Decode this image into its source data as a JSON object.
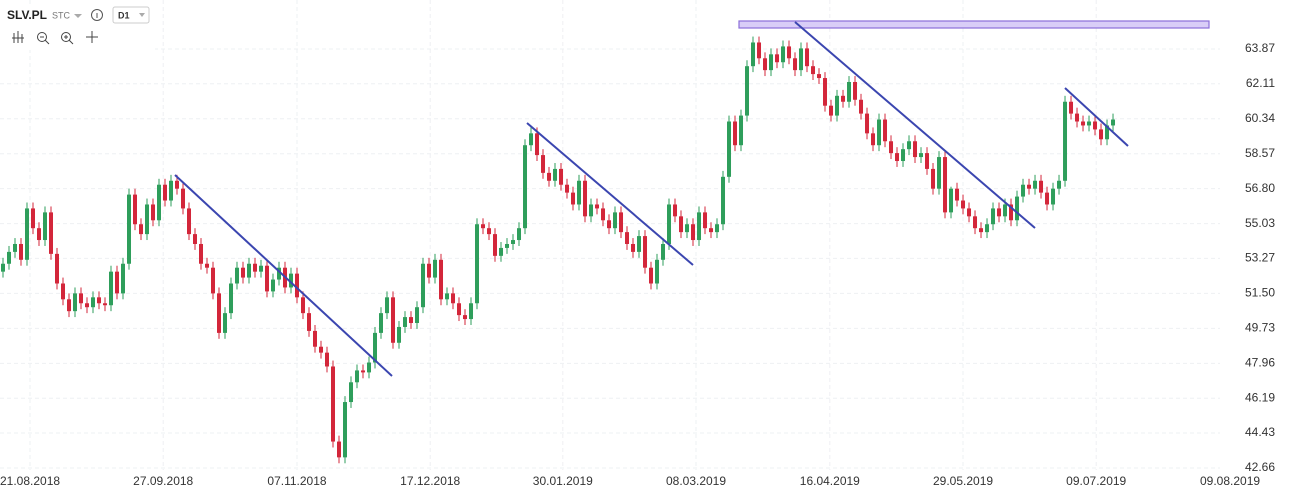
{
  "toolbar": {
    "symbol": "SLV.PL",
    "mode": "STC",
    "interval": "D1"
  },
  "chart_data": {
    "type": "candlestick",
    "up_color": "#2e9e5b",
    "down_color": "#d3263a",
    "grid": true,
    "xlim": [
      -0.5,
      202.83
    ],
    "xticks": [
      {
        "value": 4.5,
        "label": "21.08.2018"
      },
      {
        "value": 26.7,
        "label": "27.09.2018"
      },
      {
        "value": 49,
        "label": "07.11.2018"
      },
      {
        "value": 71.2,
        "label": "17.12.2018"
      },
      {
        "value": 93.3,
        "label": "30.01.2019"
      },
      {
        "value": 115.5,
        "label": "08.03.2019"
      },
      {
        "value": 137.8,
        "label": "16.04.2019"
      },
      {
        "value": 160,
        "label": "29.05.2019"
      },
      {
        "value": 182.2,
        "label": "09.07.2019"
      },
      {
        "value": 204.5,
        "label": "09.08.2019"
      }
    ],
    "ylim": [
      42.56,
      66.35
    ],
    "yticks": [
      63.87,
      62.11,
      60.34,
      58.57,
      {
        "value": 56.8,
        "label": "56.80"
      },
      55.03,
      53.27,
      {
        "value": 51.5,
        "label": "51.50"
      },
      49.73,
      47.96,
      46.19,
      44.43,
      42.66
    ],
    "open": [
      52.6,
      53.0,
      53.6,
      54.0,
      53.2,
      55.8,
      54.8,
      54.2,
      55.6,
      53.5,
      52.0,
      51.2,
      50.6,
      51.5,
      51.0,
      50.8,
      51.3,
      51.0,
      50.9,
      52.6,
      51.5,
      53.0,
      56.5,
      55.0,
      54.5,
      56.0,
      55.2,
      57.0,
      56.2,
      57.2,
      56.8,
      55.8,
      54.5,
      54.0,
      53.0,
      52.8,
      51.5,
      49.5,
      50.5,
      52.0,
      52.8,
      52.3,
      53.0,
      52.6,
      52.9,
      51.6,
      52.2,
      52.8,
      51.8,
      52.5,
      51.3,
      50.5,
      49.6,
      48.8,
      48.5,
      47.8,
      44.0,
      43.2,
      46.0,
      47.0,
      47.6,
      47.5,
      48.0,
      49.5,
      50.5,
      51.3,
      49.0,
      49.8,
      50.3,
      50.0,
      50.8,
      53.0,
      52.3,
      53.2,
      51.2,
      51.5,
      51.0,
      50.4,
      50.2,
      51.0,
      55.0,
      54.8,
      54.5,
      53.4,
      53.8,
      54.0,
      54.2,
      54.8,
      59.0,
      59.6,
      58.5,
      57.6,
      57.2,
      57.8,
      57.0,
      56.6,
      56.0,
      57.2,
      55.4,
      56.0,
      55.8,
      55.2,
      54.8,
      55.6,
      54.6,
      54.0,
      53.6,
      54.4,
      52.8,
      52.0,
      53.2,
      54.0,
      56.0,
      55.4,
      54.6,
      55.0,
      54.2,
      55.6,
      54.8,
      54.6,
      55.0,
      57.4,
      60.2,
      59.0,
      60.5,
      63.0,
      64.2,
      63.4,
      62.8,
      63.6,
      63.2,
      64.0,
      63.4,
      62.8,
      63.9,
      63.0,
      62.6,
      62.4,
      61.0,
      60.5,
      61.5,
      61.2,
      62.2,
      61.3,
      60.6,
      59.6,
      59.0,
      60.3,
      59.2,
      58.6,
      58.2,
      58.8,
      59.2,
      58.4,
      58.6,
      57.8,
      56.8,
      58.4,
      55.6,
      56.8,
      56.2,
      55.8,
      55.4,
      54.8,
      54.6,
      55.0,
      55.8,
      55.4,
      56.0,
      55.2,
      56.4,
      57.0,
      56.8,
      57.2,
      56.6,
      56.0,
      56.8,
      57.2,
      61.2,
      60.6,
      60.2,
      60.0,
      60.2,
      59.8,
      59.3,
      60.0
    ],
    "high": [
      53.3,
      53.9,
      54.3,
      54.3,
      56.1,
      56.1,
      55.1,
      55.9,
      55.9,
      53.8,
      52.3,
      51.5,
      51.8,
      51.8,
      51.3,
      51.6,
      51.6,
      51.3,
      52.9,
      52.9,
      53.3,
      56.8,
      56.8,
      55.3,
      56.3,
      56.3,
      57.3,
      57.3,
      57.5,
      57.5,
      57.1,
      56.1,
      54.8,
      54.3,
      53.3,
      53.1,
      51.8,
      50.8,
      52.3,
      53.1,
      53.1,
      53.3,
      53.3,
      53.2,
      53.2,
      52.5,
      53.1,
      53.1,
      52.8,
      52.8,
      51.6,
      50.8,
      49.9,
      49.1,
      48.8,
      48.1,
      44.3,
      46.3,
      47.3,
      47.9,
      47.9,
      48.3,
      49.8,
      50.8,
      51.6,
      51.6,
      50.1,
      50.6,
      50.6,
      51.1,
      53.3,
      53.3,
      53.5,
      53.5,
      51.8,
      51.8,
      51.3,
      50.7,
      51.3,
      55.3,
      55.3,
      55.1,
      54.8,
      54.1,
      54.3,
      54.5,
      55.1,
      59.3,
      59.9,
      59.9,
      58.8,
      57.9,
      58.1,
      58.1,
      57.3,
      56.9,
      57.5,
      57.5,
      56.3,
      56.3,
      56.1,
      55.5,
      55.9,
      55.9,
      54.9,
      54.3,
      54.7,
      54.7,
      53.1,
      53.5,
      54.3,
      56.3,
      56.3,
      55.7,
      55.3,
      55.3,
      55.9,
      55.9,
      55.1,
      55.3,
      57.7,
      60.5,
      60.5,
      60.8,
      63.3,
      64.5,
      64.5,
      63.7,
      63.9,
      63.9,
      64.3,
      64.3,
      63.7,
      64.2,
      64.2,
      63.3,
      62.9,
      62.7,
      61.3,
      61.8,
      61.8,
      62.5,
      62.5,
      61.6,
      60.9,
      59.9,
      60.6,
      60.6,
      59.5,
      58.9,
      59.1,
      59.5,
      59.5,
      58.9,
      58.9,
      58.1,
      58.7,
      58.7,
      56.9,
      57.1,
      56.5,
      56.1,
      55.7,
      55.1,
      55.3,
      56.1,
      56.1,
      56.3,
      56.3,
      56.7,
      57.3,
      57.3,
      57.5,
      57.5,
      56.9,
      57.1,
      57.5,
      61.5,
      61.5,
      60.9,
      60.5,
      60.5,
      60.5,
      60.1,
      60.3,
      60.6
    ],
    "low": [
      52.3,
      52.7,
      53.3,
      52.9,
      52.9,
      54.5,
      53.9,
      53.9,
      53.2,
      51.7,
      50.9,
      50.3,
      50.3,
      50.7,
      50.5,
      50.5,
      50.7,
      50.6,
      50.6,
      51.2,
      51.2,
      52.7,
      54.7,
      54.2,
      54.2,
      54.9,
      54.9,
      55.9,
      55.9,
      56.5,
      55.5,
      54.2,
      53.7,
      52.7,
      52.5,
      51.2,
      49.2,
      49.2,
      50.2,
      51.7,
      52.0,
      52.0,
      52.3,
      52.3,
      51.3,
      51.3,
      51.9,
      51.5,
      51.5,
      51.0,
      50.2,
      49.3,
      48.5,
      48.2,
      47.5,
      43.7,
      42.9,
      42.9,
      45.7,
      46.7,
      47.2,
      47.2,
      47.7,
      49.2,
      50.2,
      48.7,
      48.7,
      49.5,
      49.7,
      49.7,
      50.5,
      52.0,
      52.0,
      50.9,
      50.9,
      50.7,
      50.1,
      49.9,
      49.9,
      50.7,
      54.5,
      54.2,
      53.1,
      53.1,
      53.5,
      53.7,
      53.9,
      54.5,
      58.7,
      58.2,
      57.3,
      56.9,
      56.9,
      56.7,
      56.3,
      55.7,
      55.7,
      55.1,
      55.1,
      55.5,
      54.9,
      54.5,
      54.5,
      54.3,
      53.7,
      53.3,
      53.3,
      52.5,
      51.7,
      51.7,
      52.9,
      53.7,
      55.1,
      54.3,
      54.3,
      53.9,
      53.9,
      54.5,
      54.3,
      54.3,
      54.7,
      57.1,
      58.7,
      58.7,
      60.2,
      62.7,
      63.1,
      62.5,
      62.5,
      62.9,
      62.9,
      63.1,
      62.5,
      62.5,
      62.7,
      62.3,
      62.1,
      60.7,
      60.2,
      60.2,
      60.9,
      60.9,
      61.0,
      60.3,
      59.3,
      58.7,
      58.7,
      58.9,
      58.3,
      57.9,
      57.9,
      58.5,
      58.1,
      58.1,
      57.5,
      56.5,
      56.5,
      55.3,
      55.3,
      55.9,
      55.5,
      55.1,
      54.5,
      54.3,
      54.3,
      54.7,
      55.1,
      55.1,
      54.9,
      54.9,
      56.1,
      56.5,
      56.5,
      56.3,
      55.7,
      55.7,
      56.5,
      56.9,
      60.3,
      59.9,
      59.7,
      59.7,
      59.5,
      59.0,
      59.0,
      59.7
    ],
    "close": [
      53.0,
      53.6,
      54.0,
      53.2,
      55.8,
      54.8,
      54.2,
      55.6,
      53.5,
      52.0,
      51.2,
      50.6,
      51.5,
      51.0,
      50.8,
      51.3,
      51.0,
      50.9,
      52.6,
      51.5,
      53.0,
      56.5,
      55.0,
      54.5,
      56.0,
      55.2,
      57.0,
      56.2,
      57.2,
      56.8,
      55.8,
      54.5,
      54.0,
      53.0,
      52.8,
      51.5,
      49.5,
      50.5,
      52.0,
      52.8,
      52.3,
      53.0,
      52.6,
      52.9,
      51.6,
      52.2,
      52.8,
      51.8,
      52.5,
      51.3,
      50.5,
      49.6,
      48.8,
      48.5,
      47.8,
      44.0,
      43.2,
      46.0,
      47.0,
      47.6,
      47.5,
      48.0,
      49.5,
      50.5,
      51.3,
      49.0,
      49.8,
      50.3,
      50.0,
      50.8,
      53.0,
      52.3,
      53.2,
      51.2,
      51.5,
      51.0,
      50.4,
      50.2,
      51.0,
      55.0,
      54.8,
      54.5,
      53.4,
      53.8,
      54.0,
      54.2,
      54.8,
      59.0,
      59.6,
      58.5,
      57.6,
      57.2,
      57.8,
      57.0,
      56.6,
      56.0,
      57.2,
      55.4,
      56.0,
      55.8,
      55.2,
      54.8,
      55.6,
      54.6,
      54.0,
      53.6,
      54.4,
      52.8,
      52.0,
      53.2,
      54.0,
      56.0,
      55.4,
      54.6,
      55.0,
      54.2,
      55.6,
      54.8,
      54.6,
      55.0,
      57.4,
      60.2,
      59.0,
      60.5,
      63.0,
      64.2,
      63.4,
      62.8,
      63.6,
      63.2,
      64.0,
      63.4,
      62.8,
      63.9,
      63.0,
      62.6,
      62.4,
      61.0,
      60.5,
      61.5,
      61.2,
      62.2,
      61.3,
      60.6,
      59.6,
      59.0,
      60.3,
      59.2,
      58.6,
      58.2,
      58.8,
      59.2,
      58.4,
      58.6,
      57.8,
      56.8,
      58.4,
      55.6,
      56.8,
      56.2,
      55.8,
      55.4,
      54.8,
      54.6,
      55.0,
      55.8,
      55.4,
      56.0,
      55.2,
      56.4,
      57.0,
      56.8,
      57.2,
      56.6,
      56.0,
      56.8,
      57.2,
      61.2,
      60.6,
      60.2,
      60.0,
      60.2,
      59.8,
      59.3,
      60.0,
      60.3
    ]
  }
}
